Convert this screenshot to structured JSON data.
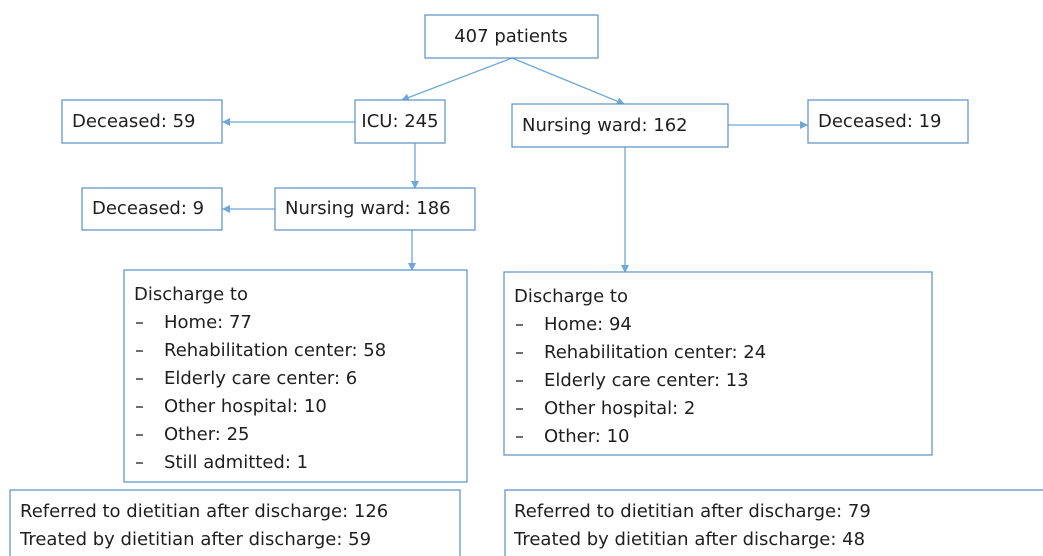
{
  "nodes": [
    {
      "label": "407 patients"
    },
    {
      "label": "ICU: 245"
    },
    {
      "label": "Nursing ward: 162"
    },
    {
      "label": "Deceased: 59"
    },
    {
      "label": "Deceased: 19"
    },
    {
      "label": "Nursing ward: 186"
    },
    {
      "label": "Deceased: 9"
    }
  ],
  "discharge": [
    {
      "title": "Discharge to",
      "items": [
        "Home: 77",
        "Rehabilitation center: 58",
        "Elderly care center: 6",
        "Other hospital: 10",
        "Other: 25",
        "Still admitted: 1"
      ]
    },
    {
      "title": "Discharge to",
      "items": [
        "Home: 94",
        "Rehabilitation center: 24",
        "Elderly care center: 13",
        "Other hospital: 2",
        "Other: 10"
      ]
    }
  ],
  "dietitian": [
    {
      "referred": "Referred to dietitian after discharge: 126",
      "treated": "Treated by dietitian after discharge: 59"
    },
    {
      "referred": "Referred to dietitian after discharge: 79",
      "treated": "Treated by dietitian after discharge: 48"
    }
  ]
}
